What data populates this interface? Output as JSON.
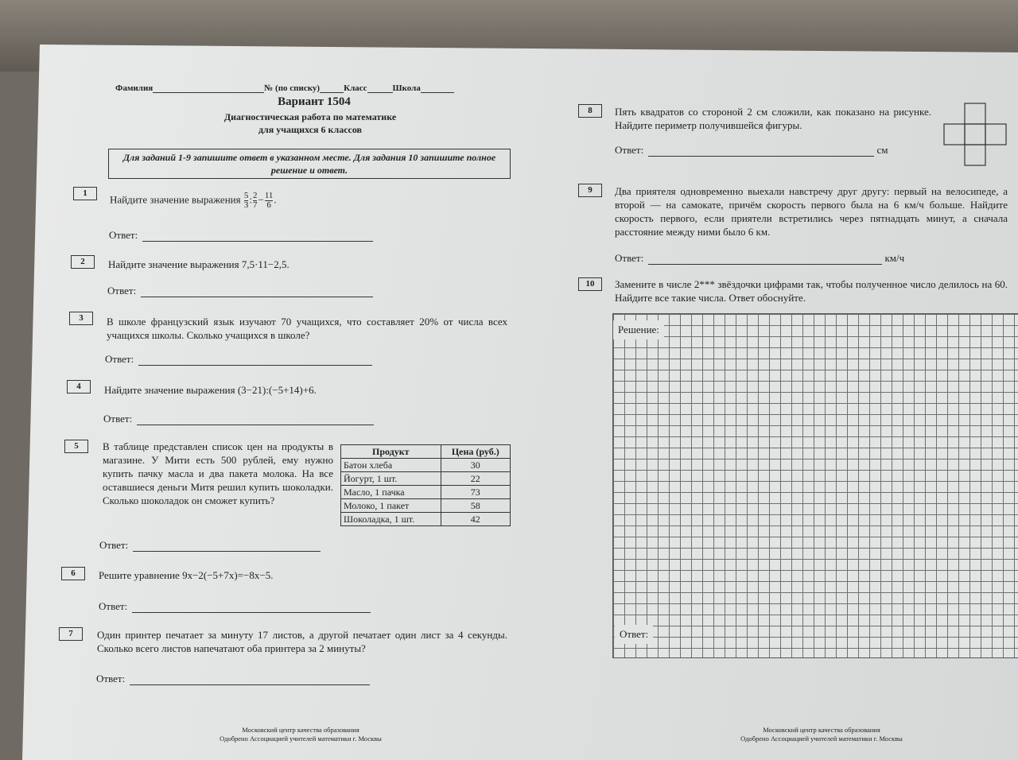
{
  "header": {
    "surname_label": "Фамилия",
    "list_no_label": "№ (по списку)",
    "class_label": "Класс",
    "school_label": "Школа",
    "title": "Вариант 1504",
    "subtitle1": "Диагностическая работа по математике",
    "subtitle2": "для учащихся 6 классов",
    "instruction": "Для заданий 1-9 запишите ответ в указанном месте. Для задания 10 запишите полное решение и ответ."
  },
  "answer_label": "Ответ:",
  "tasks": [
    {
      "num": "1",
      "text": "Найдите значение выражения",
      "expr": {
        "a_num": "5",
        "a_den": "3",
        "op1": ":",
        "b_num": "2",
        "b_den": "7",
        "op2": "−",
        "c_num": "11",
        "c_den": "6",
        "end": "."
      }
    },
    {
      "num": "2",
      "text": "Найдите значение выражения 7,5·11−2,5."
    },
    {
      "num": "3",
      "text": "В школе французский язык изучают 70 учащихся, что составляет 20% от числа всех учащихся школы. Сколько учащихся в школе?"
    },
    {
      "num": "4",
      "text": "Найдите значение выражения (3−21):(−5+14)+6."
    },
    {
      "num": "5",
      "text": "В таблице представлен список цен на продукты в магазине. У Мити есть 500 рублей, ему нужно купить пачку масла и два пакета молока. На все оставшиеся деньги Митя решил купить шоколадки. Сколько шоколадок он сможет купить?",
      "table": {
        "headers": [
          "Продукт",
          "Цена (руб.)"
        ],
        "rows": [
          [
            "Батон хлеба",
            "30"
          ],
          [
            "Йогурт, 1 шт.",
            "22"
          ],
          [
            "Масло, 1 пачка",
            "73"
          ],
          [
            "Молоко, 1 пакет",
            "58"
          ],
          [
            "Шоколадка, 1 шт.",
            "42"
          ]
        ]
      }
    },
    {
      "num": "6",
      "text": "Решите уравнение 9x−2(−5+7x)=−8x−5."
    },
    {
      "num": "7",
      "text": "Один принтер печатает за минуту 17 листов, а другой печатает один лист за 4 секунды. Сколько всего листов напечатают оба принтера за 2 минуты?"
    },
    {
      "num": "8",
      "text": "Пять квадратов со стороной 2 см сложили, как показано на рисунке. Найдите периметр получившейся фигуры.",
      "unit": "см"
    },
    {
      "num": "9",
      "text": "Два приятеля одновременно выехали навстречу друг другу: первый на велосипеде, а второй — на самокате, причём скорость первого была на 6 км/ч больше. Найдите скорость первого, если приятели встретились через пятнадцать минут, а сначала расстояние между ними было 6 км.",
      "unit": "км/ч"
    },
    {
      "num": "10",
      "text": "Замените в числе 2*** звёздочки цифрами так, чтобы полученное число делилось на 60. Найдите все такие числа. Ответ обоснуйте.",
      "solution_label": "Решение:"
    }
  ],
  "footer": {
    "line1": "Московский центр качества образования",
    "line2": "Одобрено Ассоциацией учителей математики г. Москвы"
  }
}
